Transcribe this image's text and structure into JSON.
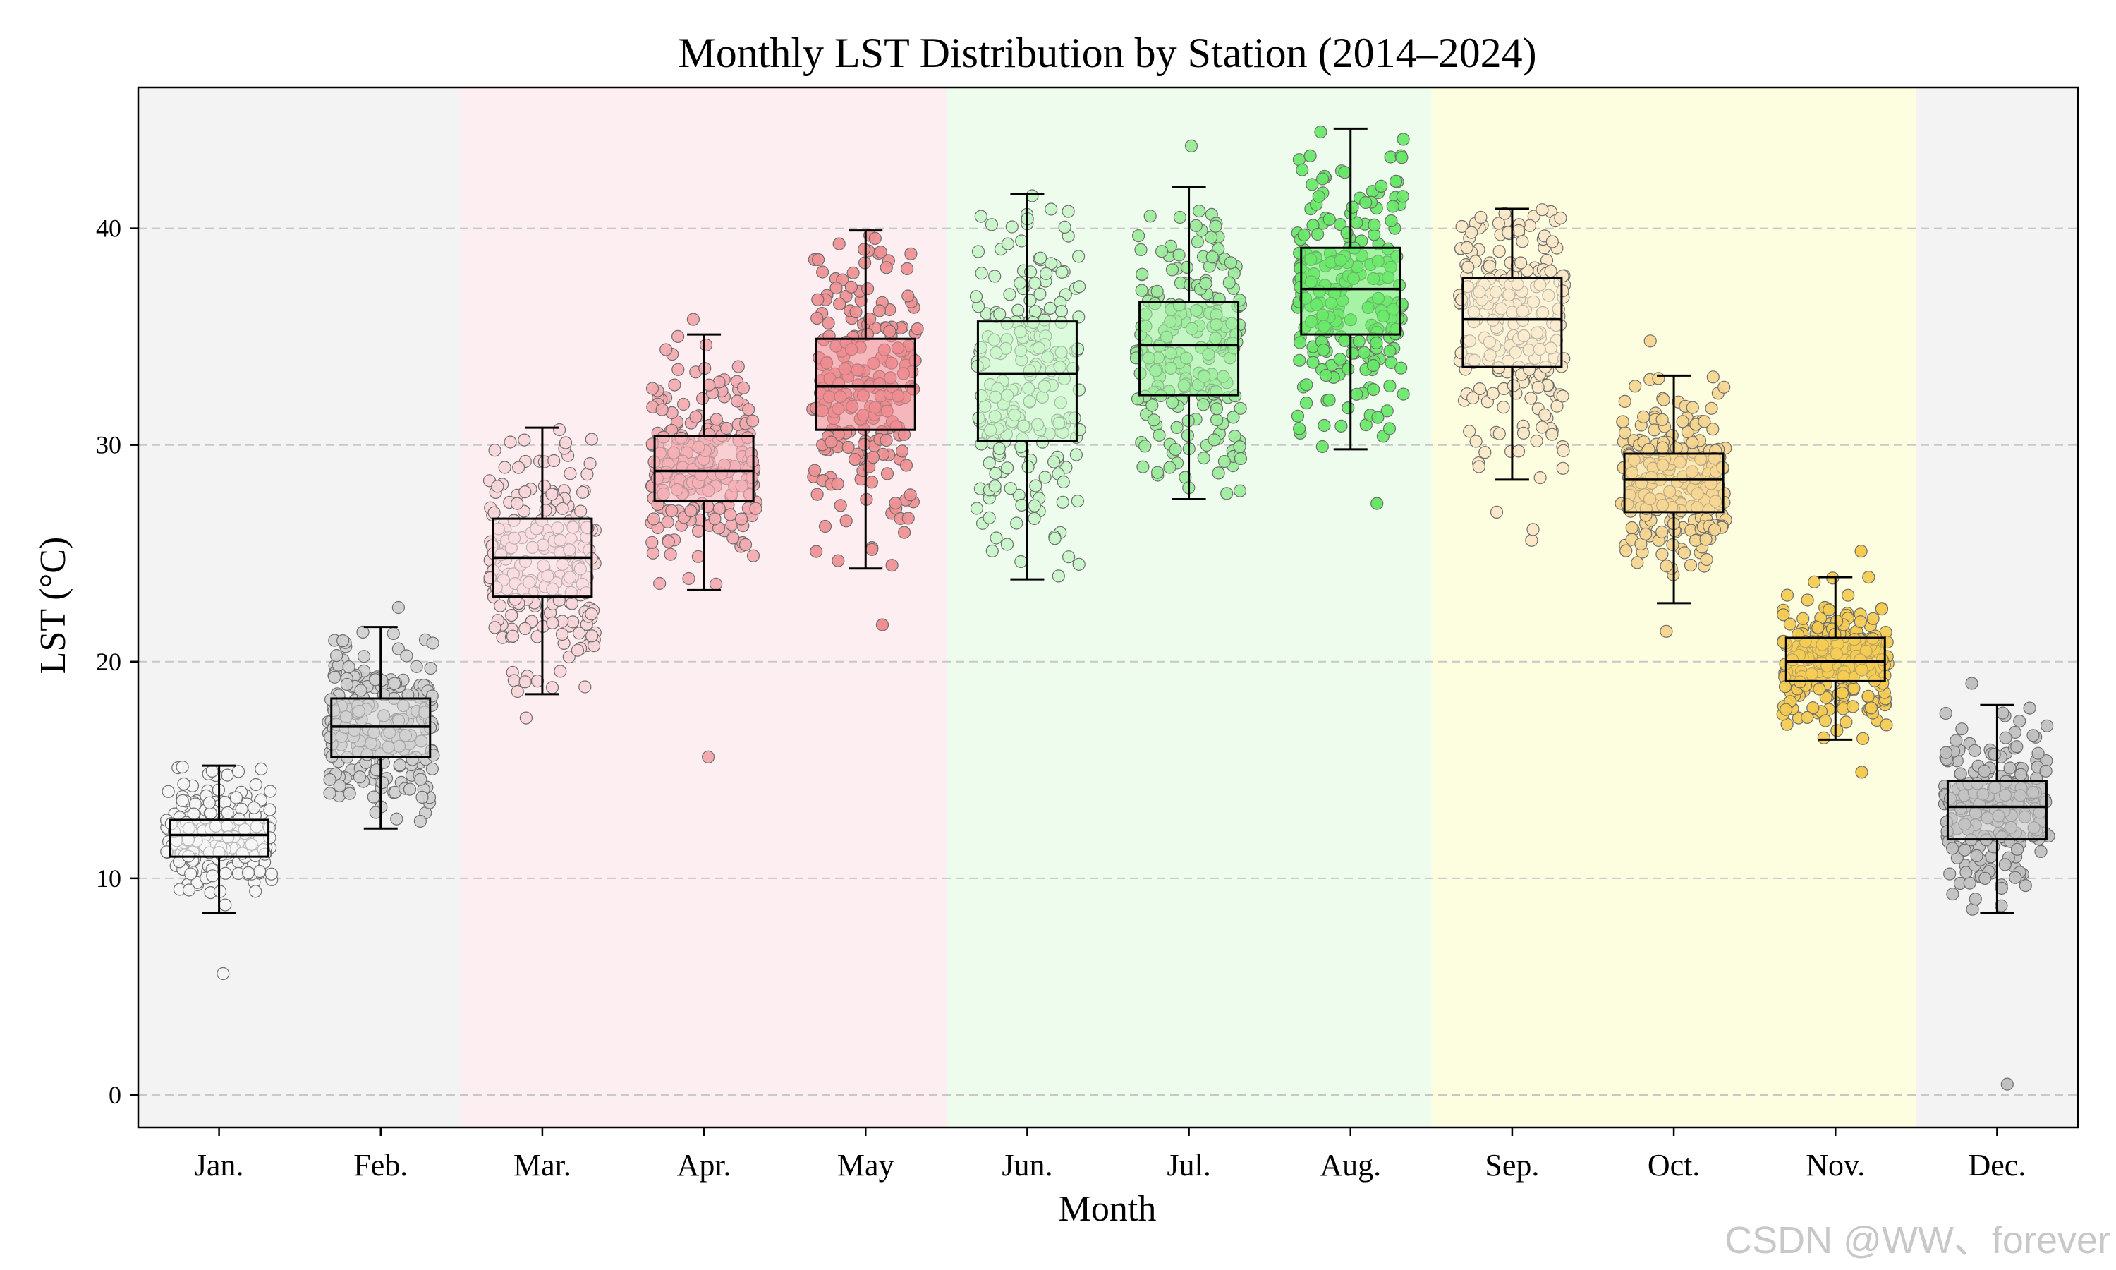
{
  "chart_data": {
    "type": "box",
    "title": "Monthly LST Distribution by Station (2014–2024)",
    "xlabel": "Month",
    "ylabel": "LST (°C)",
    "ylim": [
      -1.5,
      46.5
    ],
    "yticks": [
      0,
      10,
      20,
      30,
      40
    ],
    "grid": "horizontal dashed",
    "categories": [
      "Jan.",
      "Feb.",
      "Mar.",
      "Apr.",
      "May",
      "Jun.",
      "Jul.",
      "Aug.",
      "Sep.",
      "Oct.",
      "Nov.",
      "Dec."
    ],
    "season_bands": [
      {
        "season": "winter",
        "months": [
          "Jan.",
          "Feb."
        ],
        "color": "#f3f3f3"
      },
      {
        "season": "spring",
        "months": [
          "Mar.",
          "Apr.",
          "May"
        ],
        "color": "#fdeef2"
      },
      {
        "season": "summer",
        "months": [
          "Jun.",
          "Jul.",
          "Aug."
        ],
        "color": "#eefcee"
      },
      {
        "season": "autumn",
        "months": [
          "Sep.",
          "Oct.",
          "Nov."
        ],
        "color": "#fdfde0"
      },
      {
        "season": "winter",
        "months": [
          "Dec."
        ],
        "color": "#f3f3f3"
      }
    ],
    "boxes": [
      {
        "month": "Jan.",
        "whisker_low": 8.4,
        "q1": 11.0,
        "median": 12.0,
        "q3": 12.7,
        "whisker_high": 15.2,
        "fill": "#f7f7f7",
        "points_fill": "#f5f5f5",
        "outliers": [
          5.6
        ]
      },
      {
        "month": "Feb.",
        "whisker_low": 12.3,
        "q1": 15.6,
        "median": 17.0,
        "q3": 18.3,
        "whisker_high": 21.6,
        "fill": "#d4d4d4",
        "points_fill": "#d0d0d0",
        "outliers": [
          22.5
        ]
      },
      {
        "month": "Mar.",
        "whisker_low": 18.5,
        "q1": 23.0,
        "median": 24.8,
        "q3": 26.6,
        "whisker_high": 30.8,
        "fill": "#fce3e6",
        "points_fill": "#f9d6d9",
        "outliers": [
          17.4
        ]
      },
      {
        "month": "Apr.",
        "whisker_low": 23.3,
        "q1": 27.4,
        "median": 28.8,
        "q3": 30.4,
        "whisker_high": 35.1,
        "fill": "#f6b7bc",
        "points_fill": "#f3aab0",
        "outliers": [
          15.6,
          35.8
        ]
      },
      {
        "month": "May",
        "whisker_low": 24.3,
        "q1": 30.7,
        "median": 32.7,
        "q3": 34.9,
        "whisker_high": 39.9,
        "fill": "#f08b8f",
        "points_fill": "#ef8f93",
        "outliers": [
          21.7
        ]
      },
      {
        "month": "Jun.",
        "whisker_low": 23.8,
        "q1": 30.2,
        "median": 33.3,
        "q3": 35.7,
        "whisker_high": 41.6,
        "fill": "#cdf8cd",
        "points_fill": "#c8f5c8",
        "outliers": [
          41.5
        ]
      },
      {
        "month": "Jul.",
        "whisker_low": 27.5,
        "q1": 32.3,
        "median": 34.6,
        "q3": 36.6,
        "whisker_high": 41.9,
        "fill": "#a3f0a3",
        "points_fill": "#9cec9c",
        "outliers": [
          43.8
        ]
      },
      {
        "month": "Aug.",
        "whisker_low": 29.8,
        "q1": 35.1,
        "median": 37.2,
        "q3": 39.1,
        "whisker_high": 44.6,
        "fill": "#6ceb6c",
        "points_fill": "#66e866",
        "outliers": [
          27.3
        ]
      },
      {
        "month": "Sep.",
        "whisker_low": 28.4,
        "q1": 33.6,
        "median": 35.8,
        "q3": 37.7,
        "whisker_high": 40.9,
        "fill": "#fcefd5",
        "points_fill": "#fae8c8",
        "outliers": [
          25.6,
          26.1,
          26.9
        ]
      },
      {
        "month": "Oct.",
        "whisker_low": 22.7,
        "q1": 26.9,
        "median": 28.4,
        "q3": 29.6,
        "whisker_high": 33.2,
        "fill": "#f7d896",
        "points_fill": "#f6d690",
        "outliers": [
          21.4,
          34.8
        ]
      },
      {
        "month": "Nov.",
        "whisker_low": 16.4,
        "q1": 19.1,
        "median": 20.0,
        "q3": 21.1,
        "whisker_high": 23.9,
        "fill": "#f5cd55",
        "points_fill": "#f4cb50",
        "outliers": [
          14.9,
          25.1
        ]
      },
      {
        "month": "Dec.",
        "whisker_low": 8.4,
        "q1": 11.8,
        "median": 13.3,
        "q3": 14.5,
        "whisker_high": 18.0,
        "fill": "#c6c6c6",
        "points_fill": "#c0c0c0",
        "outliers": [
          0.5,
          19.0
        ]
      }
    ],
    "points_per_month": 220
  },
  "watermark": "CSDN @WW、forever"
}
